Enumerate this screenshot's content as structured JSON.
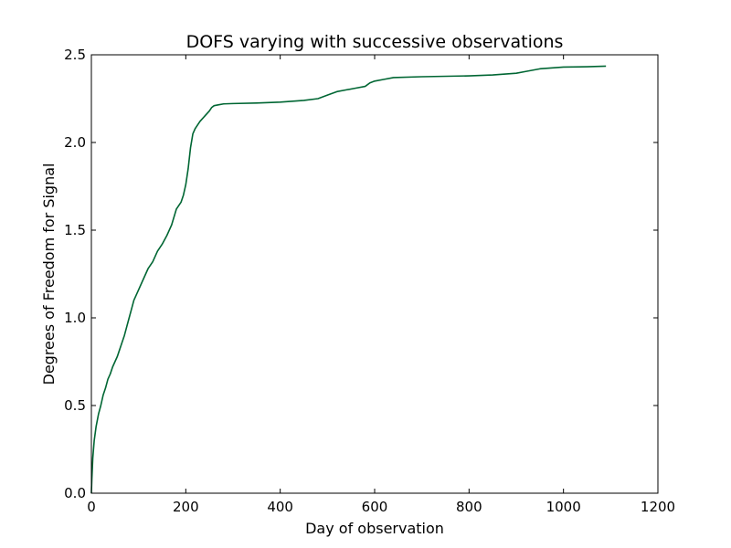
{
  "chart_data": {
    "type": "line",
    "title": "DOFS varying with successive observations",
    "xlabel": "Day of observation",
    "ylabel": "Degrees of Freedom for Signal",
    "xlim": [
      0,
      1200
    ],
    "ylim": [
      0.0,
      2.5
    ],
    "xticks": [
      0,
      200,
      400,
      600,
      800,
      1000,
      1200
    ],
    "yticks": [
      0.0,
      0.5,
      1.0,
      1.5,
      2.0,
      2.5
    ],
    "xtick_labels": [
      "0",
      "200",
      "400",
      "600",
      "800",
      "1000",
      "1200"
    ],
    "ytick_labels": [
      "0.0",
      "0.5",
      "1.0",
      "1.5",
      "2.0",
      "2.5"
    ],
    "grid": false,
    "line_color": "#006633",
    "series": [
      {
        "x": [
          0,
          1,
          3,
          6,
          10,
          15,
          20,
          25,
          30,
          35,
          40,
          45,
          50,
          55,
          60,
          65,
          70,
          75,
          80,
          85,
          90,
          95,
          100,
          110,
          120,
          130,
          140,
          150,
          160,
          170,
          180,
          190,
          195,
          200,
          205,
          210,
          215,
          220,
          230,
          240,
          250,
          255,
          260,
          270,
          280,
          300,
          350,
          400,
          450,
          480,
          500,
          520,
          540,
          560,
          580,
          590,
          600,
          620,
          640,
          700,
          800,
          850,
          900,
          920,
          950,
          1000,
          1050,
          1090
        ],
        "values": [
          0.0,
          0.08,
          0.2,
          0.3,
          0.38,
          0.45,
          0.5,
          0.56,
          0.6,
          0.65,
          0.68,
          0.72,
          0.75,
          0.78,
          0.82,
          0.86,
          0.9,
          0.95,
          1.0,
          1.05,
          1.1,
          1.13,
          1.16,
          1.22,
          1.28,
          1.32,
          1.38,
          1.42,
          1.47,
          1.53,
          1.62,
          1.66,
          1.7,
          1.76,
          1.85,
          1.97,
          2.05,
          2.08,
          2.12,
          2.15,
          2.18,
          2.2,
          2.21,
          2.215,
          2.22,
          2.222,
          2.225,
          2.23,
          2.24,
          2.25,
          2.27,
          2.29,
          2.3,
          2.31,
          2.32,
          2.34,
          2.35,
          2.36,
          2.37,
          2.375,
          2.38,
          2.385,
          2.395,
          2.405,
          2.42,
          2.43,
          2.432,
          2.435
        ]
      }
    ]
  }
}
